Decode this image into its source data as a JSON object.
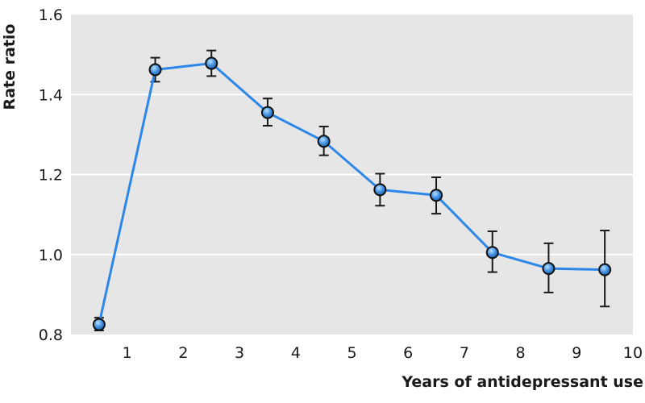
{
  "chart_data": {
    "type": "line",
    "title": "",
    "xlabel": "Years of antidepressant use",
    "ylabel": "Rate ratio",
    "xlim": [
      0,
      10
    ],
    "ylim": [
      0.8,
      1.6
    ],
    "x_ticks": [
      1,
      2,
      3,
      4,
      5,
      6,
      7,
      8,
      9,
      10
    ],
    "x_tick_labels": [
      "1",
      "2",
      "3",
      "4",
      "5",
      "6",
      "7",
      "8",
      "9",
      "10"
    ],
    "y_ticks": [
      0.8,
      1.0,
      1.2,
      1.4,
      1.6
    ],
    "y_tick_labels": [
      "0.8",
      "1.0",
      "1.2",
      "1.4",
      "1.6"
    ],
    "grid": "horizontal",
    "legend": "none",
    "series": [
      {
        "x": [
          0.5,
          1.5,
          2.5,
          3.5,
          4.5,
          5.5,
          6.5,
          7.5,
          8.5,
          9.5
        ],
        "values": [
          0.825,
          1.462,
          1.478,
          1.355,
          1.283,
          1.162,
          1.148,
          1.005,
          0.965,
          0.962
        ],
        "lower": [
          0.81,
          1.432,
          1.446,
          1.322,
          1.248,
          1.122,
          1.102,
          0.956,
          0.905,
          0.87
        ],
        "upper": [
          0.842,
          1.492,
          1.51,
          1.39,
          1.32,
          1.202,
          1.193,
          1.058,
          1.028,
          1.06
        ]
      }
    ],
    "colors": {
      "plot_background": "#e6e6e6",
      "gridline": "#ffffff",
      "line": "#2d87e8",
      "marker_fill": "#3f8fe0",
      "marker_highlight": "#9fd0ff",
      "marker_edge": "#101010",
      "error_bar": "#1a1a1a",
      "text": "#1a1a1a"
    }
  }
}
